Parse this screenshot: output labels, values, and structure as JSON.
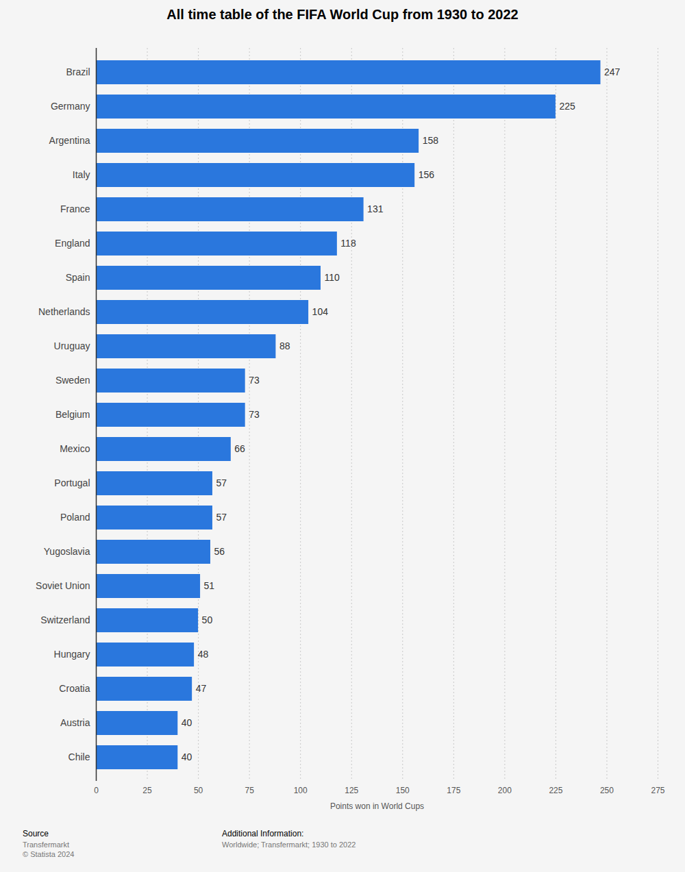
{
  "chart_data": {
    "type": "bar",
    "orientation": "horizontal",
    "title": "All time table of the FIFA World Cup from 1930 to 2022",
    "x_label": "Points won in World Cups",
    "categories": [
      "Brazil",
      "Germany",
      "Argentina",
      "Italy",
      "France",
      "England",
      "Spain",
      "Netherlands",
      "Uruguay",
      "Sweden",
      "Belgium",
      "Mexico",
      "Portugal",
      "Poland",
      "Yugoslavia",
      "Soviet Union",
      "Switzerland",
      "Hungary",
      "Croatia",
      "Austria",
      "Chile"
    ],
    "values": [
      247,
      225,
      158,
      156,
      131,
      118,
      110,
      104,
      88,
      73,
      73,
      66,
      57,
      57,
      56,
      51,
      50,
      48,
      47,
      40,
      40
    ],
    "color": "#2a77dd",
    "xlim": [
      0,
      275
    ],
    "xticks": [
      0,
      25,
      50,
      75,
      100,
      125,
      150,
      175,
      200,
      225,
      250,
      275
    ],
    "grid": true,
    "data_labels": true,
    "source": {
      "heading": "Source",
      "lines": [
        "Transfermarkt",
        "© Statista 2024"
      ]
    },
    "additional_info": {
      "heading": "Additional Information:",
      "lines": [
        "Worldwide; Transfermarkt; 1930 to 2022"
      ]
    }
  }
}
